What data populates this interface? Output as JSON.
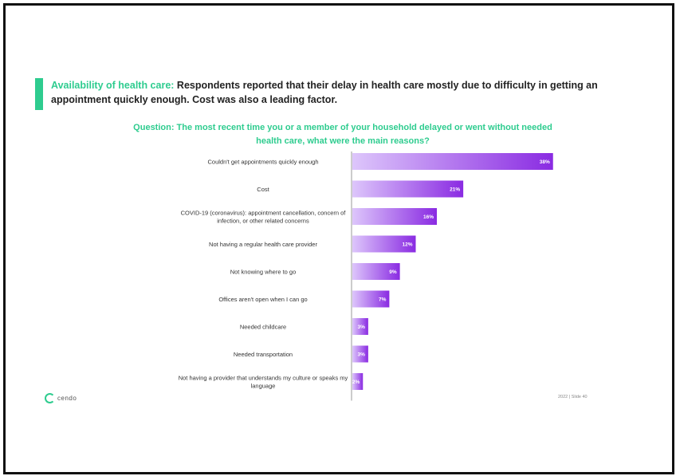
{
  "headline": {
    "lead": "Availability of health care:",
    "rest": " Respondents reported that their delay in health care mostly due to difficulty in getting an appointment quickly enough. Cost was also a leading factor."
  },
  "question": "Question: The most recent time you or a member of your household delayed or went without needed health care, what were the main reasons?",
  "logo_text": "cendo",
  "footer": "2022 | Slide 40",
  "colors": {
    "accent": "#2ecc8f",
    "bar_dark": "#8a2be2",
    "bar_light": "#ddc6fb"
  },
  "chart_data": {
    "type": "bar",
    "orientation": "horizontal",
    "categories": [
      "Couldn't get appointments quickly enough",
      "Cost",
      "COVID-19 (coronavirus): appointment cancellation, concern of infection, or other related concerns",
      "Not having a regular health care provider",
      "Not knowing where to go",
      "Offices aren't open when I can go",
      "Needed childcare",
      "Needed transportation",
      "Not having a provider that understands my culture or speaks my language"
    ],
    "values": [
      38,
      21,
      16,
      12,
      9,
      7,
      3,
      3,
      2
    ],
    "value_labels": [
      "38%",
      "21%",
      "16%",
      "12%",
      "9%",
      "7%",
      "3%",
      "3%",
      "2%"
    ],
    "xlim": [
      0,
      40
    ],
    "grid": false,
    "legend": "none"
  }
}
